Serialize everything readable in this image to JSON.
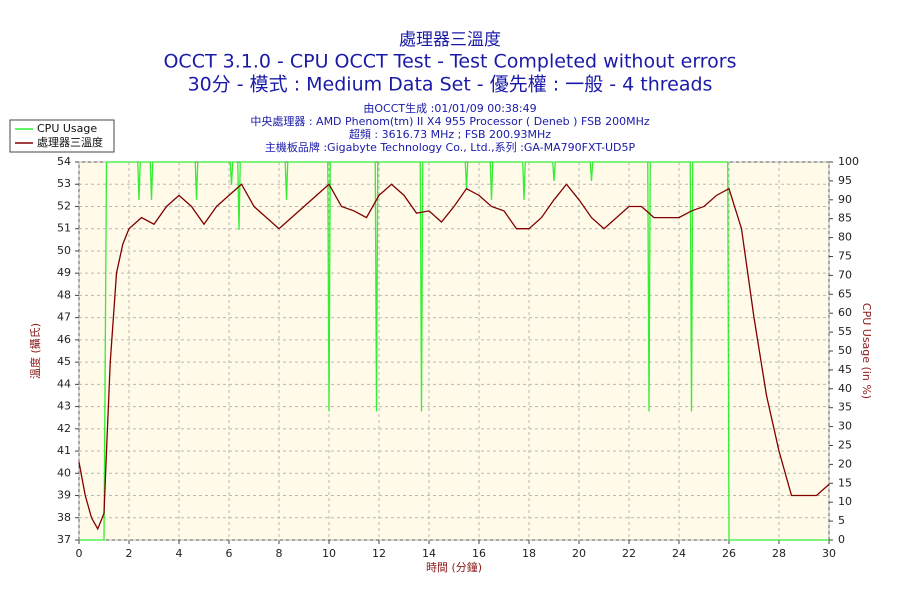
{
  "chart_data": {
    "type": "line",
    "title": "處理器三溫度",
    "subtitle": "OCCT 3.1.0 - CPU OCCT Test - Test Completed without errors",
    "subtitle2": "30分 - 模式 : Medium Data Set - 優先權 : 一般 - 4 threads",
    "info": [
      "由OCCT生成 :01/01/09 00:38:49",
      "中央處理器 : AMD Phenom(tm) II X4 955 Processor ( Deneb ) FSB 200MHz",
      "超頻 : 3616.73 MHz ; FSB 200.93MHz",
      "主機板品牌 :Gigabyte Technology Co., Ltd.,系列 :GA-MA790FXT-UD5P"
    ],
    "xlabel": "時間 (分鐘)",
    "ylabel": "溫度 (攝氏)",
    "y2label": "CPU Usage (in %)",
    "xlim": [
      0,
      30
    ],
    "xticks": [
      0,
      2,
      4,
      6,
      8,
      10,
      12,
      14,
      16,
      18,
      20,
      22,
      24,
      26,
      28,
      30
    ],
    "ylim": [
      37,
      54
    ],
    "yticks": [
      37,
      38,
      39,
      40,
      41,
      42,
      43,
      44,
      45,
      46,
      47,
      48,
      49,
      50,
      51,
      52,
      53,
      54
    ],
    "y2lim": [
      0,
      100
    ],
    "y2ticks": [
      0,
      5,
      10,
      15,
      20,
      25,
      30,
      35,
      40,
      45,
      50,
      55,
      60,
      65,
      70,
      75,
      80,
      85,
      90,
      95,
      100
    ],
    "grid": true,
    "legend": "upper left",
    "series": [
      {
        "name": "CPU Usage",
        "color": "#33ee33",
        "axis": "y2",
        "x": [
          0,
          1,
          1.1,
          2.35,
          2.4,
          2.45,
          2.85,
          2.9,
          2.95,
          4.65,
          4.7,
          4.75,
          6.05,
          6.1,
          6.15,
          6.35,
          6.4,
          6.45,
          8.25,
          8.3,
          8.35,
          9.95,
          10,
          10.05,
          11.85,
          11.9,
          11.95,
          13.65,
          13.7,
          13.75,
          15.45,
          15.5,
          15.55,
          16.45,
          16.5,
          16.55,
          17.75,
          17.8,
          17.85,
          18.95,
          19,
          19.05,
          20.45,
          20.5,
          20.55,
          22.75,
          22.8,
          22.85,
          24.45,
          24.5,
          24.55,
          25.95,
          26,
          30
        ],
        "values": [
          0,
          0,
          100,
          100,
          90,
          100,
          100,
          90,
          100,
          100,
          90,
          100,
          100,
          94,
          100,
          100,
          82,
          100,
          100,
          90,
          100,
          100,
          34,
          100,
          100,
          34,
          100,
          100,
          34,
          100,
          100,
          93,
          100,
          100,
          90,
          100,
          100,
          90,
          100,
          100,
          95,
          100,
          100,
          95,
          100,
          100,
          34,
          100,
          100,
          34,
          100,
          100,
          0,
          0
        ]
      },
      {
        "name": "處理器三溫度",
        "color": "#800000",
        "x": [
          0,
          0.25,
          0.5,
          0.75,
          1,
          1.1,
          1.25,
          1.5,
          1.75,
          2,
          2.5,
          3,
          3.5,
          4,
          4.5,
          5,
          5.5,
          6,
          6.5,
          7,
          7.5,
          8,
          8.5,
          9,
          9.5,
          10,
          10.5,
          11,
          11.5,
          12,
          12.5,
          13,
          13.5,
          14,
          14.5,
          15,
          15.5,
          16,
          16.5,
          17,
          17.5,
          18,
          18.5,
          19,
          19.5,
          20,
          20.5,
          21,
          21.5,
          22,
          22.5,
          23,
          23.5,
          24,
          24.5,
          25,
          25.5,
          26,
          26.5,
          27,
          27.5,
          28,
          28.5,
          29,
          29.5,
          30
        ],
        "values": [
          40.5,
          39,
          38,
          37.5,
          38.2,
          41,
          45,
          49,
          50.3,
          51,
          51.5,
          51.2,
          52,
          52.5,
          52,
          51.2,
          52,
          52.5,
          53,
          52,
          51.5,
          51,
          51.5,
          52,
          52.5,
          53,
          52,
          51.8,
          51.5,
          52.5,
          53,
          52.5,
          51.7,
          51.8,
          51.3,
          52,
          52.8,
          52.5,
          52,
          51.8,
          51,
          51,
          51.5,
          52.3,
          53,
          52.3,
          51.5,
          51,
          51.5,
          52,
          52,
          51.5,
          51.5,
          51.5,
          51.8,
          52,
          52.5,
          52.8,
          51,
          47,
          43.5,
          41,
          39,
          39,
          39,
          39.5
        ]
      }
    ]
  }
}
